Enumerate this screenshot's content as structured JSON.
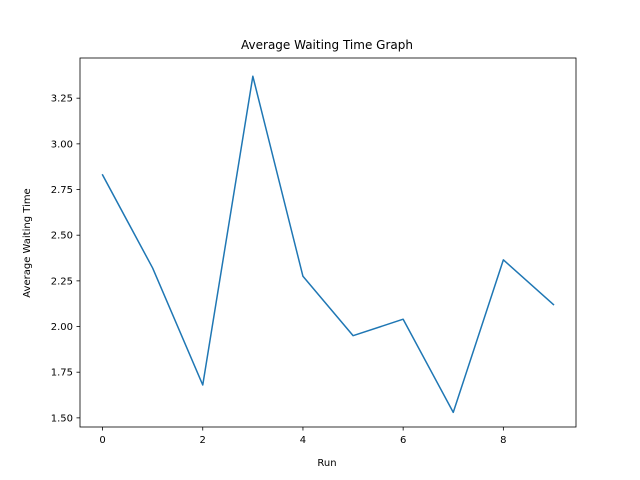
{
  "chart_data": {
    "type": "line",
    "title": "Average Waiting Time Graph",
    "xlabel": "Run",
    "ylabel": "Average Waiting Time",
    "x": [
      0,
      1,
      2,
      3,
      4,
      5,
      6,
      7,
      8,
      9
    ],
    "series": [
      {
        "values": [
          2.83,
          2.32,
          1.68,
          3.37,
          2.275,
          1.95,
          2.04,
          1.53,
          2.365,
          2.12
        ],
        "color": "#1f77b4"
      }
    ],
    "xlim": [
      -0.45,
      9.45
    ],
    "ylim": [
      1.45,
      3.47
    ],
    "xticks": [
      0,
      2,
      4,
      6,
      8
    ],
    "xtick_labels": [
      "0",
      "2",
      "4",
      "6",
      "8"
    ],
    "yticks": [
      1.5,
      1.75,
      2.0,
      2.25,
      2.5,
      2.75,
      3.0,
      3.25
    ],
    "ytick_labels": [
      "1.50",
      "1.75",
      "2.00",
      "2.25",
      "2.50",
      "2.75",
      "3.00",
      "3.25"
    ],
    "grid": false,
    "legend": "none"
  }
}
